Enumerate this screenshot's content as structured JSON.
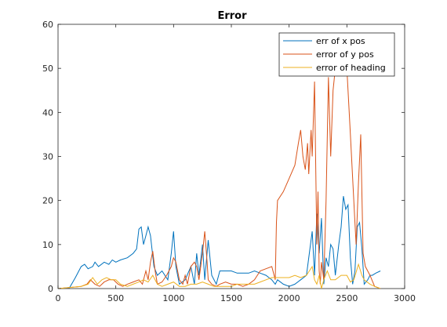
{
  "chart_data": {
    "type": "line",
    "title": "Error",
    "xlabel": "",
    "ylabel": "",
    "xlim": [
      0,
      3000
    ],
    "ylim": [
      0,
      60
    ],
    "xticks": [
      0,
      500,
      1000,
      1500,
      2000,
      2500,
      3000
    ],
    "yticks": [
      0,
      10,
      20,
      30,
      40,
      50,
      60
    ],
    "grid": false,
    "legend_position": "top-right",
    "series": [
      {
        "name": "err of x pos",
        "color": "#0072BD",
        "points": [
          [
            0,
            0
          ],
          [
            100,
            0.2
          ],
          [
            150,
            2.5
          ],
          [
            200,
            5
          ],
          [
            230,
            5.5
          ],
          [
            260,
            4.5
          ],
          [
            300,
            5
          ],
          [
            320,
            6
          ],
          [
            350,
            5
          ],
          [
            400,
            6
          ],
          [
            440,
            5.5
          ],
          [
            470,
            6.5
          ],
          [
            500,
            6
          ],
          [
            540,
            6.5
          ],
          [
            600,
            7
          ],
          [
            650,
            8
          ],
          [
            680,
            9
          ],
          [
            700,
            13.5
          ],
          [
            720,
            14
          ],
          [
            740,
            10
          ],
          [
            760,
            12
          ],
          [
            780,
            14
          ],
          [
            800,
            12
          ],
          [
            830,
            5
          ],
          [
            860,
            3
          ],
          [
            900,
            4
          ],
          [
            950,
            2
          ],
          [
            980,
            8
          ],
          [
            1000,
            13
          ],
          [
            1020,
            5
          ],
          [
            1050,
            1
          ],
          [
            1100,
            2
          ],
          [
            1150,
            5
          ],
          [
            1180,
            1
          ],
          [
            1200,
            8
          ],
          [
            1220,
            3
          ],
          [
            1250,
            10
          ],
          [
            1270,
            2
          ],
          [
            1300,
            11
          ],
          [
            1330,
            3
          ],
          [
            1370,
            1
          ],
          [
            1400,
            4
          ],
          [
            1450,
            4
          ],
          [
            1500,
            4
          ],
          [
            1550,
            3.5
          ],
          [
            1600,
            3.5
          ],
          [
            1650,
            3.5
          ],
          [
            1700,
            4
          ],
          [
            1750,
            3.5
          ],
          [
            1800,
            3
          ],
          [
            1850,
            2
          ],
          [
            1880,
            1
          ],
          [
            1900,
            2
          ],
          [
            1950,
            1
          ],
          [
            2000,
            0.5
          ],
          [
            2050,
            1
          ],
          [
            2100,
            2
          ],
          [
            2150,
            3
          ],
          [
            2200,
            13
          ],
          [
            2220,
            3
          ],
          [
            2240,
            17
          ],
          [
            2260,
            8
          ],
          [
            2280,
            16
          ],
          [
            2300,
            1
          ],
          [
            2320,
            7
          ],
          [
            2340,
            5
          ],
          [
            2360,
            10
          ],
          [
            2380,
            9
          ],
          [
            2400,
            3
          ],
          [
            2430,
            10
          ],
          [
            2450,
            14
          ],
          [
            2470,
            21
          ],
          [
            2490,
            18
          ],
          [
            2510,
            19
          ],
          [
            2530,
            7
          ],
          [
            2550,
            1
          ],
          [
            2570,
            4
          ],
          [
            2590,
            14
          ],
          [
            2610,
            15
          ],
          [
            2630,
            9
          ],
          [
            2650,
            1
          ],
          [
            2680,
            2
          ],
          [
            2700,
            3
          ],
          [
            2720,
            3
          ],
          [
            2750,
            3.5
          ],
          [
            2790,
            4
          ]
        ]
      },
      {
        "name": "error of y pos",
        "color": "#D95319",
        "points": [
          [
            0,
            0
          ],
          [
            200,
            0.5
          ],
          [
            250,
            1
          ],
          [
            280,
            2
          ],
          [
            320,
            1
          ],
          [
            360,
            0.5
          ],
          [
            400,
            1.5
          ],
          [
            440,
            2
          ],
          [
            480,
            2
          ],
          [
            520,
            1
          ],
          [
            560,
            0.5
          ],
          [
            600,
            1
          ],
          [
            650,
            1.5
          ],
          [
            700,
            2
          ],
          [
            730,
            1
          ],
          [
            760,
            4
          ],
          [
            780,
            2
          ],
          [
            800,
            6
          ],
          [
            820,
            8.5
          ],
          [
            840,
            4
          ],
          [
            860,
            1
          ],
          [
            900,
            1.5
          ],
          [
            940,
            3
          ],
          [
            980,
            5
          ],
          [
            1000,
            7
          ],
          [
            1020,
            6
          ],
          [
            1050,
            2
          ],
          [
            1080,
            1
          ],
          [
            1100,
            3
          ],
          [
            1120,
            1
          ],
          [
            1150,
            5
          ],
          [
            1180,
            6
          ],
          [
            1200,
            5
          ],
          [
            1220,
            2
          ],
          [
            1250,
            8
          ],
          [
            1270,
            13
          ],
          [
            1290,
            6
          ],
          [
            1300,
            2
          ],
          [
            1330,
            1
          ],
          [
            1370,
            0.5
          ],
          [
            1400,
            1
          ],
          [
            1450,
            1.5
          ],
          [
            1500,
            1
          ],
          [
            1550,
            1
          ],
          [
            1600,
            0.5
          ],
          [
            1650,
            1
          ],
          [
            1700,
            2
          ],
          [
            1750,
            4
          ],
          [
            1800,
            4.5
          ],
          [
            1850,
            5
          ],
          [
            1880,
            2
          ],
          [
            1890,
            15
          ],
          [
            1900,
            20
          ],
          [
            1950,
            22
          ],
          [
            2000,
            25
          ],
          [
            2050,
            28
          ],
          [
            2080,
            33
          ],
          [
            2100,
            36
          ],
          [
            2120,
            30
          ],
          [
            2140,
            27
          ],
          [
            2160,
            33
          ],
          [
            2170,
            26
          ],
          [
            2190,
            36
          ],
          [
            2200,
            30
          ],
          [
            2220,
            47
          ],
          [
            2240,
            10
          ],
          [
            2250,
            22
          ],
          [
            2260,
            4
          ],
          [
            2270,
            1
          ],
          [
            2280,
            6
          ],
          [
            2300,
            2
          ],
          [
            2320,
            20
          ],
          [
            2340,
            48
          ],
          [
            2360,
            30
          ],
          [
            2380,
            45
          ],
          [
            2400,
            50
          ],
          [
            2430,
            50
          ],
          [
            2460,
            50
          ],
          [
            2480,
            50
          ],
          [
            2500,
            50
          ],
          [
            2530,
            35
          ],
          [
            2550,
            25
          ],
          [
            2570,
            15
          ],
          [
            2580,
            10
          ],
          [
            2600,
            24
          ],
          [
            2620,
            35
          ],
          [
            2640,
            8
          ],
          [
            2660,
            5
          ],
          [
            2700,
            3
          ],
          [
            2740,
            0.5
          ],
          [
            2790,
            0
          ]
        ]
      },
      {
        "name": "error of heading",
        "color": "#EDB120",
        "points": [
          [
            0,
            0
          ],
          [
            200,
            0.5
          ],
          [
            260,
            1
          ],
          [
            300,
            2.5
          ],
          [
            340,
            1
          ],
          [
            380,
            2
          ],
          [
            420,
            2.5
          ],
          [
            460,
            2
          ],
          [
            500,
            2
          ],
          [
            540,
            1
          ],
          [
            600,
            0.5
          ],
          [
            650,
            1
          ],
          [
            700,
            1.5
          ],
          [
            740,
            2
          ],
          [
            780,
            1.5
          ],
          [
            820,
            3
          ],
          [
            860,
            1
          ],
          [
            900,
            0.5
          ],
          [
            950,
            1
          ],
          [
            1000,
            1.5
          ],
          [
            1050,
            0.5
          ],
          [
            1100,
            0.5
          ],
          [
            1150,
            1
          ],
          [
            1200,
            1
          ],
          [
            1250,
            1.5
          ],
          [
            1300,
            1
          ],
          [
            1350,
            0.5
          ],
          [
            1400,
            0.5
          ],
          [
            1450,
            0.5
          ],
          [
            1500,
            0.5
          ],
          [
            1550,
            1
          ],
          [
            1600,
            1
          ],
          [
            1650,
            1
          ],
          [
            1700,
            1
          ],
          [
            1750,
            1.5
          ],
          [
            1800,
            2
          ],
          [
            1850,
            2.5
          ],
          [
            1900,
            2.5
          ],
          [
            1950,
            2.5
          ],
          [
            2000,
            2.5
          ],
          [
            2050,
            3
          ],
          [
            2100,
            2.5
          ],
          [
            2150,
            3
          ],
          [
            2200,
            5
          ],
          [
            2220,
            2
          ],
          [
            2240,
            1
          ],
          [
            2260,
            3
          ],
          [
            2280,
            0
          ],
          [
            2300,
            2
          ],
          [
            2330,
            4
          ],
          [
            2360,
            2
          ],
          [
            2400,
            2
          ],
          [
            2450,
            3
          ],
          [
            2500,
            3
          ],
          [
            2530,
            1.5
          ],
          [
            2560,
            2
          ],
          [
            2600,
            5.5
          ],
          [
            2630,
            3
          ],
          [
            2650,
            2
          ],
          [
            2700,
            1
          ],
          [
            2740,
            0.5
          ],
          [
            2790,
            0
          ]
        ]
      }
    ]
  }
}
